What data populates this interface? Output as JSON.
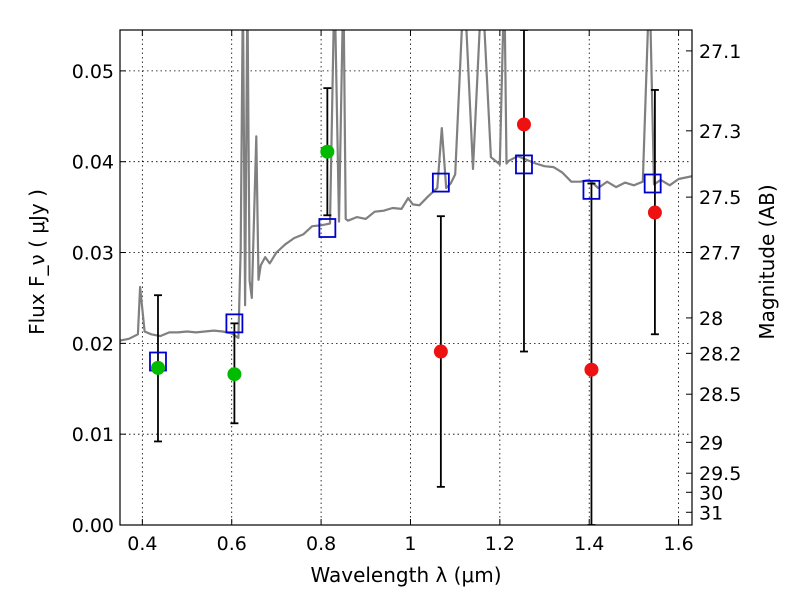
{
  "chart_data": {
    "type": "scatter",
    "xlabel": "Wavelength  λ (μm)",
    "ylabel": "Flux  F_ν  ( μJy )",
    "ylabel_right": "Magnitude (AB)",
    "xlim": [
      0.35,
      1.63
    ],
    "ylim": [
      0.0,
      0.0545
    ],
    "grid": true,
    "x_ticks": [
      {
        "value": 0.4,
        "label": "0.4"
      },
      {
        "value": 0.6,
        "label": "0.6"
      },
      {
        "value": 0.8,
        "label": "0.8"
      },
      {
        "value": 1.0,
        "label": "1"
      },
      {
        "value": 1.2,
        "label": "1.2"
      },
      {
        "value": 1.4,
        "label": "1.4"
      },
      {
        "value": 1.6,
        "label": "1.6"
      }
    ],
    "y_ticks": [
      {
        "value": 0.0,
        "label": "0.00"
      },
      {
        "value": 0.01,
        "label": "0.01"
      },
      {
        "value": 0.02,
        "label": "0.02"
      },
      {
        "value": 0.03,
        "label": "0.03"
      },
      {
        "value": 0.04,
        "label": "0.04"
      },
      {
        "value": 0.05,
        "label": "0.05"
      }
    ],
    "right_ticks": [
      {
        "label": "27.1",
        "flux": 0.0522
      },
      {
        "label": "27.3",
        "flux": 0.0434
      },
      {
        "label": "27.5",
        "flux": 0.0361
      },
      {
        "label": "27.7",
        "flux": 0.03
      },
      {
        "label": "28",
        "flux": 0.0228
      },
      {
        "label": "28.2",
        "flux": 0.0189
      },
      {
        "label": "28.5",
        "flux": 0.0144
      },
      {
        "label": "29",
        "flux": 0.0091
      },
      {
        "label": "29.5",
        "flux": 0.0057
      },
      {
        "label": "30",
        "flux": 0.0036
      },
      {
        "label": "31",
        "flux": 0.0014
      }
    ],
    "colors": {
      "spectrum": "#808080",
      "model_box": "#0000cc",
      "green_point": "#00bb00",
      "red_point": "#ee1111",
      "errorbar": "#000000"
    },
    "model_photometry": {
      "x": [
        0.435,
        0.606,
        0.814,
        1.068,
        1.254,
        1.405,
        1.542
      ],
      "y": [
        0.018,
        0.0222,
        0.0327,
        0.0377,
        0.0397,
        0.0369,
        0.0376
      ]
    },
    "observed_detections": {
      "x": [
        0.435,
        0.606,
        0.814
      ],
      "y": [
        0.0173,
        0.0166,
        0.0411
      ],
      "y_lo": [
        0.0092,
        0.0112,
        0.0341
      ],
      "y_hi": [
        0.0253,
        0.0222,
        0.0481
      ]
    },
    "observed_nir": {
      "x": [
        1.068,
        1.254,
        1.405,
        1.547
      ],
      "y": [
        0.0191,
        0.0441,
        0.0171,
        0.0344
      ],
      "y_lo": [
        0.0042,
        0.0191,
        0.0,
        0.021
      ],
      "y_hi": [
        0.034,
        0.0545,
        0.0376,
        0.0479
      ]
    },
    "spectrum": {
      "x": [
        0.35,
        0.37,
        0.39,
        0.395,
        0.405,
        0.42,
        0.44,
        0.46,
        0.48,
        0.5,
        0.52,
        0.54,
        0.56,
        0.58,
        0.6,
        0.615,
        0.62,
        0.625,
        0.63,
        0.635,
        0.64,
        0.645,
        0.655,
        0.66,
        0.665,
        0.675,
        0.685,
        0.7,
        0.72,
        0.74,
        0.76,
        0.78,
        0.8,
        0.81,
        0.82,
        0.83,
        0.84,
        0.85,
        0.855,
        0.86,
        0.88,
        0.9,
        0.92,
        0.94,
        0.96,
        0.98,
        0.995,
        1.005,
        1.02,
        1.04,
        1.06,
        1.07,
        1.08,
        1.09,
        1.1,
        1.12,
        1.14,
        1.16,
        1.18,
        1.2,
        1.21,
        1.215,
        1.22,
        1.24,
        1.26,
        1.28,
        1.3,
        1.32,
        1.34,
        1.36,
        1.38,
        1.4,
        1.42,
        1.44,
        1.46,
        1.48,
        1.5,
        1.52,
        1.535,
        1.545,
        1.56,
        1.58,
        1.6,
        1.63
      ],
      "y": [
        0.0203,
        0.0205,
        0.021,
        0.0262,
        0.0213,
        0.021,
        0.0208,
        0.0212,
        0.0212,
        0.0213,
        0.0212,
        0.0213,
        0.0214,
        0.0213,
        0.0211,
        0.0206,
        0.0305,
        0.059,
        0.0242,
        0.059,
        0.0269,
        0.025,
        0.0428,
        0.027,
        0.0286,
        0.0295,
        0.0288,
        0.03,
        0.0309,
        0.0316,
        0.032,
        0.0329,
        0.033,
        0.0331,
        0.0332,
        0.06,
        0.0334,
        0.06,
        0.0337,
        0.0335,
        0.0339,
        0.0337,
        0.0345,
        0.0346,
        0.0349,
        0.0348,
        0.036,
        0.0353,
        0.0352,
        0.0362,
        0.0371,
        0.0437,
        0.0371,
        0.0376,
        0.0386,
        0.06,
        0.0392,
        0.06,
        0.0405,
        0.0397,
        0.06,
        0.0398,
        0.0401,
        0.0406,
        0.0402,
        0.0398,
        0.0395,
        0.0394,
        0.0388,
        0.0378,
        0.0378,
        0.038,
        0.0371,
        0.0378,
        0.0372,
        0.0377,
        0.0374,
        0.0378,
        0.06,
        0.0375,
        0.038,
        0.0374,
        0.0381,
        0.0384
      ]
    }
  }
}
